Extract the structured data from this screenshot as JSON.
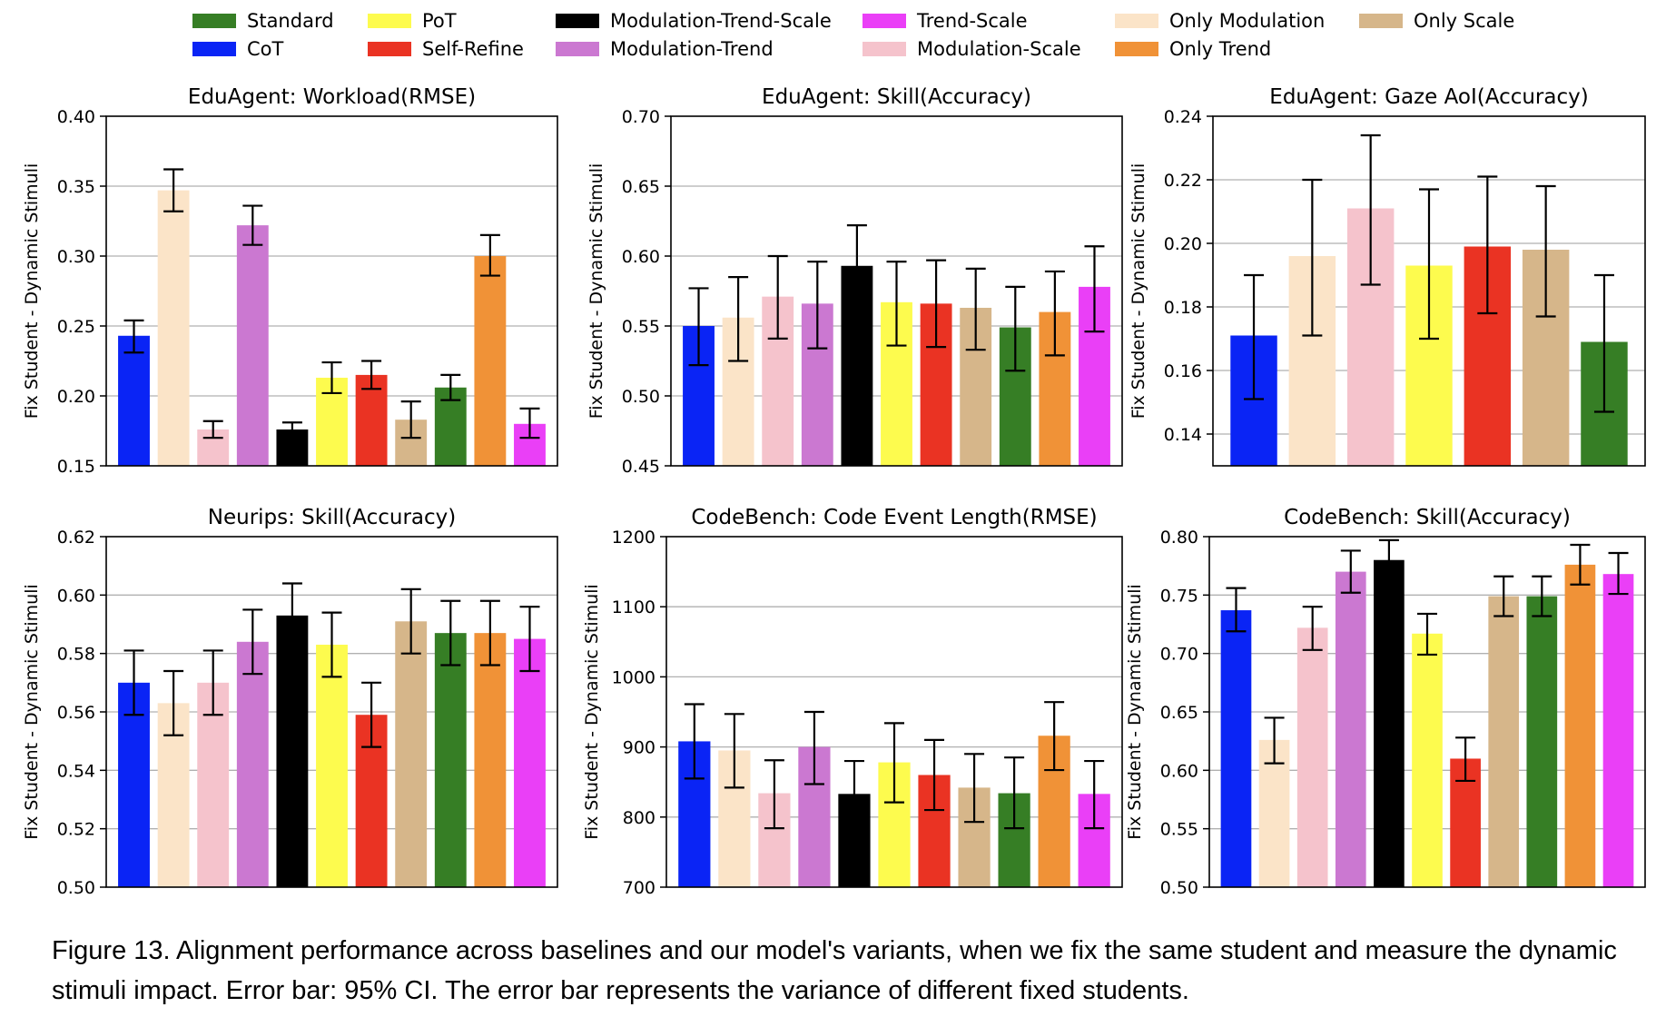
{
  "legend": [
    {
      "name": "Standard",
      "color": "#367e25"
    },
    {
      "name": "CoT",
      "color": "#0a24f5"
    },
    {
      "name": "PoT",
      "color": "#fdfb4e"
    },
    {
      "name": "Self-Refine",
      "color": "#ea3323"
    },
    {
      "name": "Modulation-Trend-Scale",
      "color": "#000000"
    },
    {
      "name": "Modulation-Trend",
      "color": "#cb78d1"
    },
    {
      "name": "Trend-Scale",
      "color": "#ea3ff7"
    },
    {
      "name": "Modulation-Scale",
      "color": "#f5c3cc"
    },
    {
      "name": "Only Modulation",
      "color": "#fbe4c8"
    },
    {
      "name": "Only Trend",
      "color": "#f09237"
    },
    {
      "name": "Only Scale",
      "color": "#d6b68a"
    }
  ],
  "chart_data": [
    {
      "type": "bar",
      "title": "EduAgent: Workload(RMSE)",
      "ylabel": "Fix Student - Dynamic Stimuli",
      "ylim": [
        0.15,
        0.4
      ],
      "yticks": [
        "0.15",
        "0.20",
        "0.25",
        "0.30",
        "0.35",
        "0.40"
      ],
      "grid": "horizontal",
      "bars": [
        {
          "series": "CoT",
          "value": 0.243,
          "err_low": 0.231,
          "err_high": 0.254
        },
        {
          "series": "Only Modulation",
          "value": 0.347,
          "err_low": 0.332,
          "err_high": 0.362
        },
        {
          "series": "Modulation-Scale",
          "value": 0.176,
          "err_low": 0.17,
          "err_high": 0.182
        },
        {
          "series": "Modulation-Trend",
          "value": 0.322,
          "err_low": 0.308,
          "err_high": 0.336
        },
        {
          "series": "Modulation-Trend-Scale",
          "value": 0.176,
          "err_low": 0.171,
          "err_high": 0.181
        },
        {
          "series": "PoT",
          "value": 0.213,
          "err_low": 0.202,
          "err_high": 0.224
        },
        {
          "series": "Self-Refine",
          "value": 0.215,
          "err_low": 0.205,
          "err_high": 0.225
        },
        {
          "series": "Only Scale",
          "value": 0.183,
          "err_low": 0.17,
          "err_high": 0.196
        },
        {
          "series": "Standard",
          "value": 0.206,
          "err_low": 0.197,
          "err_high": 0.215
        },
        {
          "series": "Only Trend",
          "value": 0.3,
          "err_low": 0.286,
          "err_high": 0.315
        },
        {
          "series": "Trend-Scale",
          "value": 0.18,
          "err_low": 0.17,
          "err_high": 0.191
        }
      ]
    },
    {
      "type": "bar",
      "title": "EduAgent: Skill(Accuracy)",
      "ylabel": "Fix Student - Dynamic Stimuli",
      "ylim": [
        0.45,
        0.7
      ],
      "yticks": [
        "0.45",
        "0.50",
        "0.55",
        "0.60",
        "0.65",
        "0.70"
      ],
      "grid": "horizontal",
      "bars": [
        {
          "series": "CoT",
          "value": 0.55,
          "err_low": 0.522,
          "err_high": 0.577
        },
        {
          "series": "Only Modulation",
          "value": 0.556,
          "err_low": 0.525,
          "err_high": 0.585
        },
        {
          "series": "Modulation-Scale",
          "value": 0.571,
          "err_low": 0.541,
          "err_high": 0.6
        },
        {
          "series": "Modulation-Trend",
          "value": 0.566,
          "err_low": 0.534,
          "err_high": 0.596
        },
        {
          "series": "Modulation-Trend-Scale",
          "value": 0.593,
          "err_low": 0.562,
          "err_high": 0.622
        },
        {
          "series": "PoT",
          "value": 0.567,
          "err_low": 0.536,
          "err_high": 0.596
        },
        {
          "series": "Self-Refine",
          "value": 0.566,
          "err_low": 0.535,
          "err_high": 0.597
        },
        {
          "series": "Only Scale",
          "value": 0.563,
          "err_low": 0.533,
          "err_high": 0.591
        },
        {
          "series": "Standard",
          "value": 0.549,
          "err_low": 0.518,
          "err_high": 0.578
        },
        {
          "series": "Only Trend",
          "value": 0.56,
          "err_low": 0.529,
          "err_high": 0.589
        },
        {
          "series": "Trend-Scale",
          "value": 0.578,
          "err_low": 0.546,
          "err_high": 0.607
        }
      ]
    },
    {
      "type": "bar",
      "title": "EduAgent: Gaze AoI(Accuracy)",
      "ylabel": "Fix Student - Dynamic Stimuli",
      "ylim": [
        0.13,
        0.24
      ],
      "yticks": [
        "0.14",
        "0.16",
        "0.18",
        "0.20",
        "0.22",
        "0.24"
      ],
      "grid": "horizontal",
      "bars": [
        {
          "series": "CoT",
          "value": 0.171,
          "err_low": 0.151,
          "err_high": 0.19
        },
        {
          "series": "Only Modulation",
          "value": 0.196,
          "err_low": 0.171,
          "err_high": 0.22
        },
        {
          "series": "Modulation-Scale",
          "value": 0.211,
          "err_low": 0.187,
          "err_high": 0.234
        },
        {
          "series": "PoT",
          "value": 0.193,
          "err_low": 0.17,
          "err_high": 0.217
        },
        {
          "series": "Self-Refine",
          "value": 0.199,
          "err_low": 0.178,
          "err_high": 0.221
        },
        {
          "series": "Only Scale",
          "value": 0.198,
          "err_low": 0.177,
          "err_high": 0.218
        },
        {
          "series": "Standard",
          "value": 0.169,
          "err_low": 0.147,
          "err_high": 0.19
        }
      ]
    },
    {
      "type": "bar",
      "title": "Neurips: Skill(Accuracy)",
      "ylabel": "Fix Student - Dynamic Stimuli",
      "ylim": [
        0.5,
        0.62
      ],
      "yticks": [
        "0.50",
        "0.52",
        "0.54",
        "0.56",
        "0.58",
        "0.60",
        "0.62"
      ],
      "grid": "horizontal",
      "bars": [
        {
          "series": "CoT",
          "value": 0.57,
          "err_low": 0.559,
          "err_high": 0.581
        },
        {
          "series": "Only Modulation",
          "value": 0.563,
          "err_low": 0.552,
          "err_high": 0.574
        },
        {
          "series": "Modulation-Scale",
          "value": 0.57,
          "err_low": 0.559,
          "err_high": 0.581
        },
        {
          "series": "Modulation-Trend",
          "value": 0.584,
          "err_low": 0.573,
          "err_high": 0.595
        },
        {
          "series": "Modulation-Trend-Scale",
          "value": 0.593,
          "err_low": 0.582,
          "err_high": 0.604
        },
        {
          "series": "PoT",
          "value": 0.583,
          "err_low": 0.572,
          "err_high": 0.594
        },
        {
          "series": "Self-Refine",
          "value": 0.559,
          "err_low": 0.548,
          "err_high": 0.57
        },
        {
          "series": "Only Scale",
          "value": 0.591,
          "err_low": 0.58,
          "err_high": 0.602
        },
        {
          "series": "Standard",
          "value": 0.587,
          "err_low": 0.576,
          "err_high": 0.598
        },
        {
          "series": "Only Trend",
          "value": 0.587,
          "err_low": 0.576,
          "err_high": 0.598
        },
        {
          "series": "Trend-Scale",
          "value": 0.585,
          "err_low": 0.574,
          "err_high": 0.596
        }
      ]
    },
    {
      "type": "bar",
      "title": "CodeBench: Code Event Length(RMSE)",
      "ylabel": "Fix Student - Dynamic Stimuli",
      "ylim": [
        700,
        1200
      ],
      "yticks": [
        "700",
        "800",
        "900",
        "1000",
        "1100",
        "1200"
      ],
      "grid": "horizontal",
      "bars": [
        {
          "series": "CoT",
          "value": 908,
          "err_low": 855,
          "err_high": 961
        },
        {
          "series": "Only Modulation",
          "value": 895,
          "err_low": 842,
          "err_high": 947
        },
        {
          "series": "Modulation-Scale",
          "value": 834,
          "err_low": 784,
          "err_high": 881
        },
        {
          "series": "Modulation-Trend",
          "value": 900,
          "err_low": 847,
          "err_high": 950
        },
        {
          "series": "Modulation-Trend-Scale",
          "value": 833,
          "err_low": 785,
          "err_high": 880
        },
        {
          "series": "PoT",
          "value": 878,
          "err_low": 821,
          "err_high": 934
        },
        {
          "series": "Self-Refine",
          "value": 860,
          "err_low": 810,
          "err_high": 910
        },
        {
          "series": "Only Scale",
          "value": 842,
          "err_low": 793,
          "err_high": 890
        },
        {
          "series": "Standard",
          "value": 834,
          "err_low": 784,
          "err_high": 885
        },
        {
          "series": "Only Trend",
          "value": 916,
          "err_low": 867,
          "err_high": 964
        },
        {
          "series": "Trend-Scale",
          "value": 833,
          "err_low": 784,
          "err_high": 880
        }
      ]
    },
    {
      "type": "bar",
      "title": "CodeBench: Skill(Accuracy)",
      "ylabel": "Fix Student - Dynamic Stimuli",
      "ylim": [
        0.5,
        0.8
      ],
      "yticks": [
        "0.50",
        "0.55",
        "0.60",
        "0.65",
        "0.70",
        "0.75",
        "0.80"
      ],
      "grid": "horizontal",
      "bars": [
        {
          "series": "CoT",
          "value": 0.737,
          "err_low": 0.719,
          "err_high": 0.756
        },
        {
          "series": "Only Modulation",
          "value": 0.626,
          "err_low": 0.606,
          "err_high": 0.645
        },
        {
          "series": "Modulation-Scale",
          "value": 0.722,
          "err_low": 0.703,
          "err_high": 0.74
        },
        {
          "series": "Modulation-Trend",
          "value": 0.77,
          "err_low": 0.752,
          "err_high": 0.788
        },
        {
          "series": "Modulation-Trend-Scale",
          "value": 0.78,
          "err_low": 0.763,
          "err_high": 0.797
        },
        {
          "series": "PoT",
          "value": 0.717,
          "err_low": 0.699,
          "err_high": 0.734
        },
        {
          "series": "Self-Refine",
          "value": 0.61,
          "err_low": 0.591,
          "err_high": 0.628
        },
        {
          "series": "Only Scale",
          "value": 0.749,
          "err_low": 0.732,
          "err_high": 0.766
        },
        {
          "series": "Standard",
          "value": 0.749,
          "err_low": 0.732,
          "err_high": 0.766
        },
        {
          "series": "Only Trend",
          "value": 0.776,
          "err_low": 0.759,
          "err_high": 0.793
        },
        {
          "series": "Trend-Scale",
          "value": 0.768,
          "err_low": 0.751,
          "err_high": 0.786
        }
      ]
    }
  ],
  "caption": "Figure 13. Alignment performance across baselines and our model's variants, when we fix the same student and measure the dynamic stimuli impact. Error bar: 95% CI. The error bar represents the variance of different fixed students."
}
